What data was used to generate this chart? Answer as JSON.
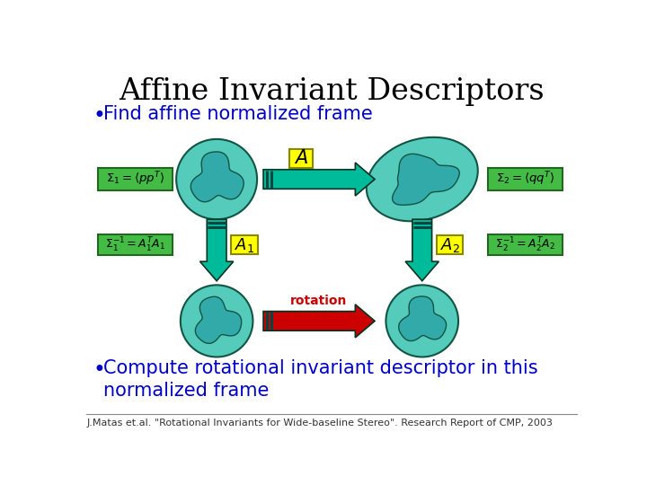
{
  "title": "Affine Invariant Descriptors",
  "title_color": "#000000",
  "title_fontsize": 24,
  "bullet1": "Find affine normalized frame",
  "bullet2": "Compute rotational invariant descriptor in this\nnormalized frame",
  "bullet_color": "#0000CC",
  "bullet_fontsize": 15,
  "footnote": "J.Matas et.al. \"Rotational Invariants for Wide-baseline Stereo\". Research Report of CMP, 2003",
  "footnote_fontsize": 8,
  "bg_color": "#FFFFFF",
  "green_box_color": "#44BB44",
  "yellow_box_color": "#FFFF00",
  "teal_arrow_color": "#00BB99",
  "red_arrow_color": "#CC0000",
  "blob_outer_color": "#55CCBB",
  "blob_inner_color": "#33AAAA",
  "stripe_color": "#004444",
  "formula1_left": "$\\Sigma_1 = \\langle pp^T \\rangle$",
  "formula1_right": "$\\Sigma_2 = \\langle qq^T \\rangle$",
  "formula2_left": "$\\Sigma_1^{-1} = A_1^T A_1$",
  "formula2_right": "$\\Sigma_2^{-1} = A_2^T A_2$"
}
